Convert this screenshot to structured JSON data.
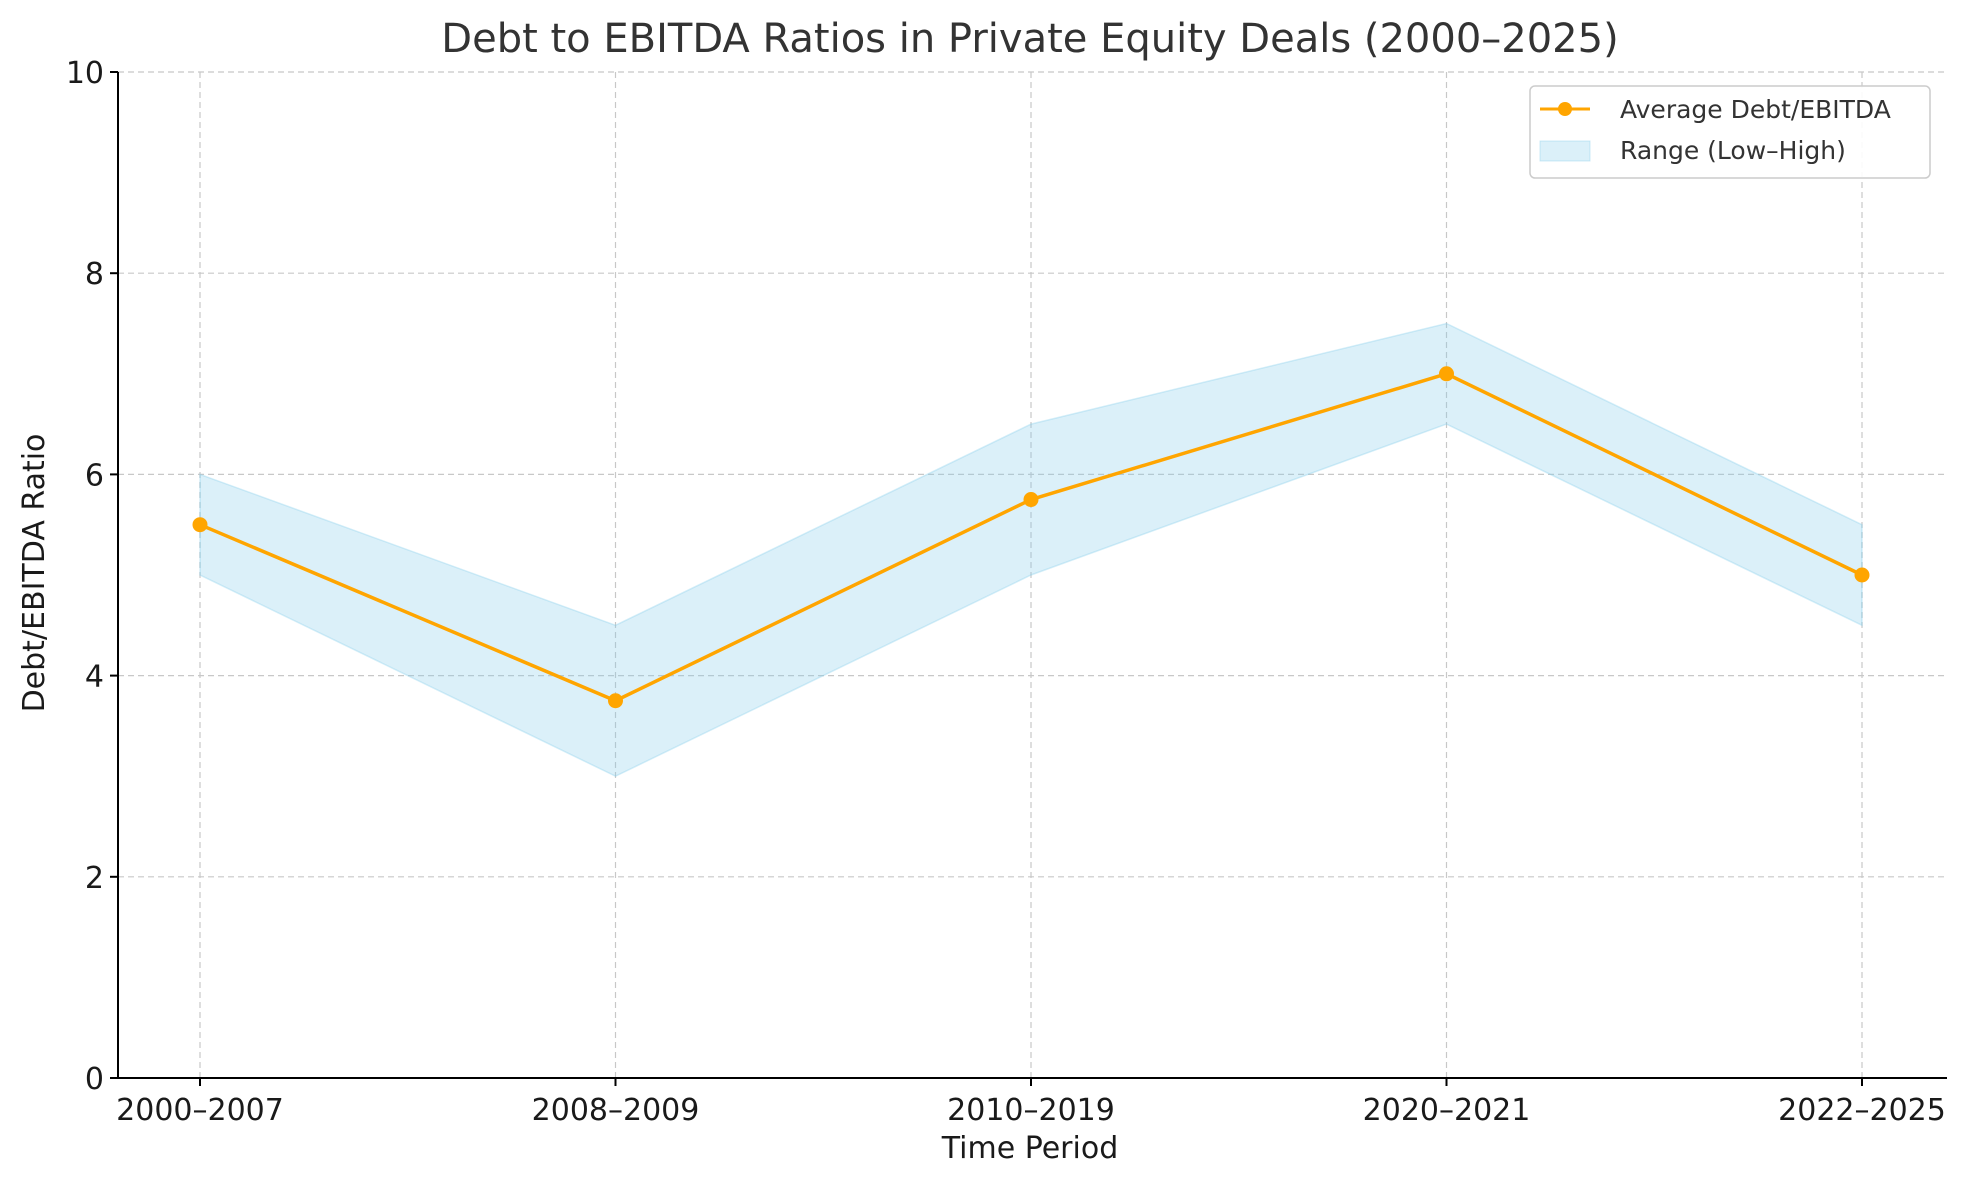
{
  "chart_data": {
    "type": "line",
    "title": "Debt to EBITDA Ratios in Private Equity Deals (2000–2025)",
    "xlabel": "Time Period",
    "ylabel": "Debt/EBITDA Ratio",
    "categories": [
      "2000–2007",
      "2008–2009",
      "2010–2019",
      "2020–2021",
      "2022–2025"
    ],
    "series": [
      {
        "name": "Average Debt/EBITDA",
        "values": [
          5.5,
          3.75,
          5.75,
          7.0,
          5.0
        ],
        "color": "#FFA500"
      }
    ],
    "range": {
      "name": "Range (Low–High)",
      "low": [
        5.0,
        3.0,
        5.0,
        6.5,
        4.5
      ],
      "high": [
        6.0,
        4.5,
        6.5,
        7.5,
        5.5
      ],
      "fill_color": "#87CEEB",
      "fill_opacity": 0.3
    },
    "ylim": [
      0,
      10
    ],
    "yticks": [
      "0",
      "2",
      "4",
      "6",
      "8",
      "10"
    ],
    "grid": true,
    "legend_position": "top-right"
  }
}
